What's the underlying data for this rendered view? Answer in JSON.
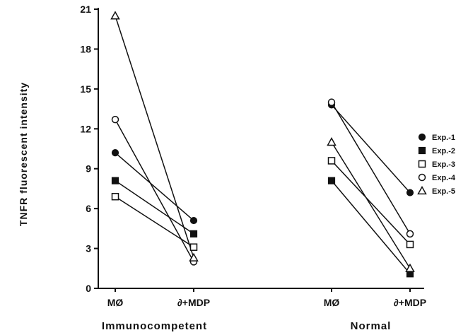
{
  "chart_data": {
    "type": "line",
    "ylabel": "TNFR  fluorescent  intensity",
    "ylim": [
      0,
      21
    ],
    "yticks": [
      0,
      3,
      6,
      9,
      12,
      15,
      18,
      21
    ],
    "groups": [
      {
        "name": "Immunocompetent",
        "categories": [
          "MØ",
          "∂+MDP"
        ]
      },
      {
        "name": "Normal",
        "categories": [
          "MØ",
          "∂+MDP"
        ]
      }
    ],
    "series": [
      {
        "name": "Exp.-1",
        "marker": "filled-circle",
        "immunocompetent": [
          10.2,
          5.1
        ],
        "normal": [
          13.8,
          7.2
        ]
      },
      {
        "name": "Exp.-2",
        "marker": "filled-square",
        "immunocompetent": [
          8.1,
          4.1
        ],
        "normal": [
          8.1,
          1.1
        ]
      },
      {
        "name": "Exp.-3",
        "marker": "open-square",
        "immunocompetent": [
          6.9,
          3.1
        ],
        "normal": [
          9.6,
          3.3
        ]
      },
      {
        "name": "Exp.-4",
        "marker": "open-circle",
        "immunocompetent": [
          12.7,
          2.0
        ],
        "normal": [
          14.0,
          4.1
        ]
      },
      {
        "name": "Exp.-5",
        "marker": "open-triangle",
        "immunocompetent": [
          20.5,
          2.3
        ],
        "normal": [
          11.0,
          1.5
        ]
      }
    ],
    "legend_position": "right",
    "grid": false
  }
}
